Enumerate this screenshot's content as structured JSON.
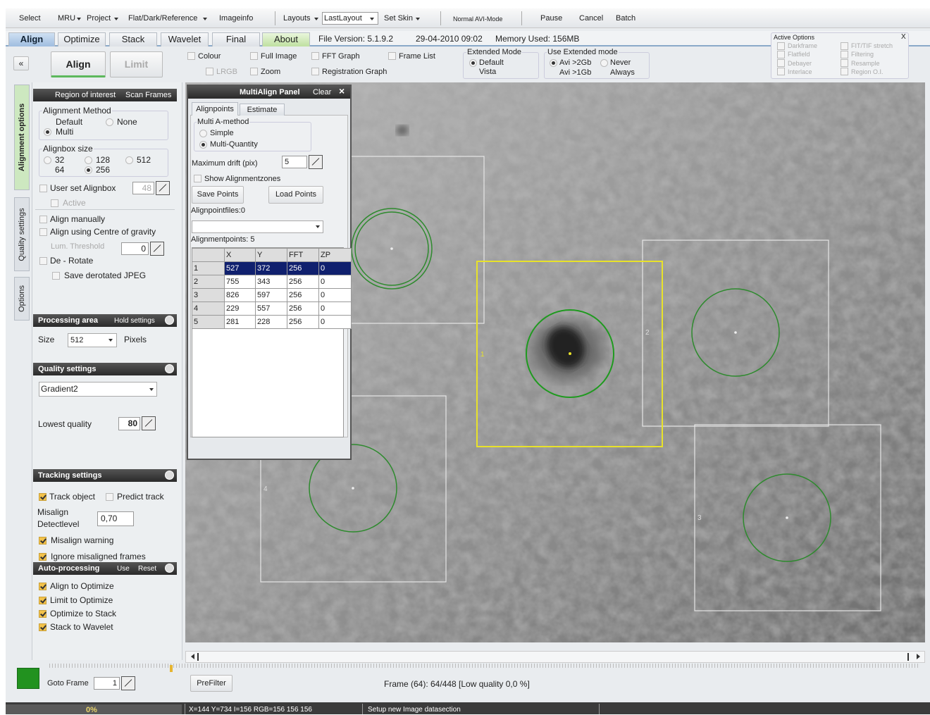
{
  "menu": [
    "Select",
    "MRU",
    "Project",
    "Flat/Dark/Reference",
    "Imageinfo",
    "Layouts",
    "LastLayout",
    "Set Skin",
    "Normal AVI-Mode",
    "Pause",
    "Cancel",
    "Batch"
  ],
  "tabs": [
    "Align",
    "Optimize",
    "Stack",
    "Wavelet",
    "Final",
    "About"
  ],
  "file_info": [
    "File Version: 5.1.9.2",
    "29-04-2010 09:02",
    "Memory Used: 156MB"
  ],
  "active_options": {
    "title": "Active Options",
    "close": "X",
    "items": [
      "Darkframe",
      "Flatfield",
      "Debayer",
      "Interlace",
      "FIT/TIF stretch",
      "Filtering",
      "Resample",
      "Region O.I."
    ]
  },
  "toolbar": {
    "collapse": "«",
    "buttons": [
      "Align",
      "Limit"
    ],
    "checks": [
      "Colour",
      "LRGB",
      "Full Image",
      "Zoom",
      "FFT Graph",
      "Registration Graph",
      "Frame List"
    ],
    "extended_mode": {
      "title": "Extended Mode",
      "options": [
        "Default",
        "Vista"
      ]
    },
    "use_extended": {
      "title": "Use Extended mode",
      "options": [
        "Avi >2Gb",
        "Avi >1Gb",
        "Never",
        "Always"
      ]
    }
  },
  "side_tabs": [
    "Alignment options",
    "Quality settings",
    "Options"
  ],
  "left_panel": {
    "header": [
      "Region of interest",
      "Scan Frames"
    ],
    "method": {
      "title": "Alignment Method",
      "options": [
        "Default",
        "None",
        "Multi"
      ]
    },
    "alignbox": {
      "title": "Alignbox size",
      "options": [
        "32",
        "128",
        "512",
        "64",
        "256"
      ]
    },
    "user_alignbox": "User set Alignbox",
    "user_alignbox_value": "48",
    "active": "Active",
    "align_manually": "Align manually",
    "centre_gravity": "Align using Centre of gravity",
    "lum_threshold": "Lum. Threshold",
    "lum_value": "0",
    "derotate": "De - Rotate",
    "save_jpeg": "Save derotated JPEG",
    "processing": {
      "title": "Processing area",
      "hold": "Hold settings",
      "size": "Size",
      "size_value": "512",
      "unit": "Pixels"
    },
    "quality": {
      "title": "Quality settings",
      "method": "Gradient2",
      "lowest": "Lowest quality",
      "lowest_value": "80"
    },
    "tracking": {
      "title": "Tracking settings",
      "track": "Track object",
      "predict": "Predict track",
      "misalign": "Misalign",
      "detect": "Detectlevel",
      "level": "0,70",
      "warning": "Misalign warning",
      "ignore": "Ignore misaligned frames"
    },
    "auto": {
      "title": "Auto-processing",
      "use": "Use",
      "reset": "Reset",
      "items": [
        "Align to Optimize",
        "Limit to Optimize",
        "Optimize to Stack",
        "Stack to Wavelet"
      ]
    }
  },
  "multialign": {
    "title": "MultiAlign Panel",
    "clear": "Clear",
    "close": "×",
    "tabs": [
      "Alignpoints",
      "Estimate"
    ],
    "method": {
      "title": "Multi A-method",
      "options": [
        "Simple",
        "Multi-Quantity"
      ]
    },
    "drift_label": "Maximum drift (pix)",
    "drift_value": "5",
    "show_zones": "Show Alignmentzones",
    "buttons": [
      "Save Points",
      "Load Points"
    ],
    "files": "Alignpointfiles:0",
    "points": "Alignmentpoints: 5",
    "table": {
      "header": [
        "X",
        "Y",
        "FFT",
        "ZP"
      ],
      "rows": [
        [
          "1",
          "527",
          "372",
          "256",
          "0"
        ],
        [
          "2",
          "755",
          "343",
          "256",
          "0"
        ],
        [
          "3",
          "826",
          "597",
          "256",
          "0"
        ],
        [
          "4",
          "229",
          "557",
          "256",
          "0"
        ],
        [
          "5",
          "281",
          "228",
          "256",
          "0"
        ]
      ]
    }
  },
  "image": {
    "box_labels": [
      "1",
      "2",
      "3",
      "4"
    ]
  },
  "bottom": {
    "goto_label": "Goto Frame",
    "goto_value": "1",
    "prefilter": "PreFilter",
    "frame_info": "Frame (64): 64/448 [Low quality 0,0 %]"
  },
  "status": [
    "0%",
    "X=144 Y=734 I=156 RGB=156 156 156",
    "Setup new Image datasection"
  ]
}
